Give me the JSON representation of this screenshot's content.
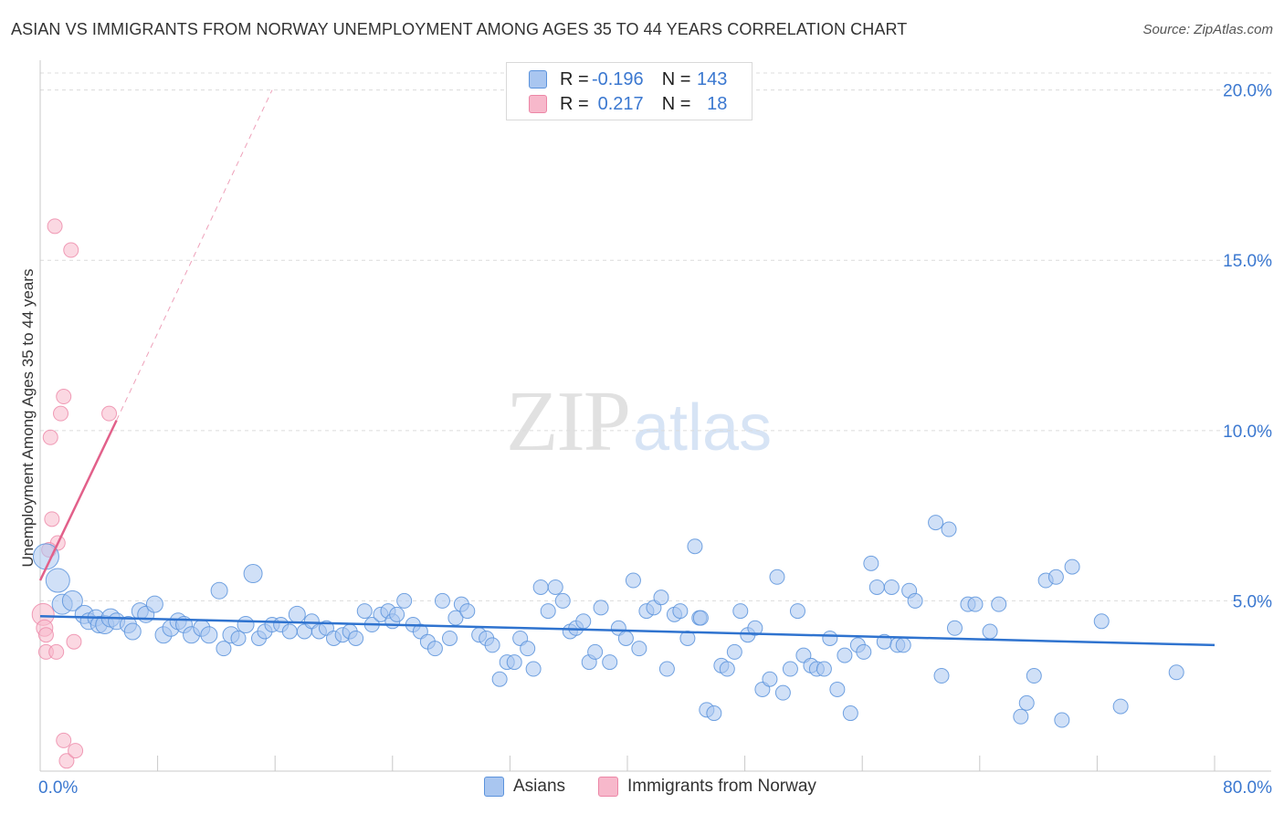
{
  "header": {
    "title": "ASIAN VS IMMIGRANTS FROM NORWAY UNEMPLOYMENT AMONG AGES 35 TO 44 YEARS CORRELATION CHART",
    "source": "Source: ZipAtlas.com"
  },
  "watermark": {
    "zip": "ZIP",
    "atlas": "atlas"
  },
  "legend": {
    "rows": [
      {
        "r_label": "R = ",
        "r_value": "-0.196",
        "n_label": "N = ",
        "n_value": "143",
        "color": "#a9c6f0"
      },
      {
        "r_label": "R = ",
        "r_value": "0.217",
        "n_label": "N = ",
        "n_value": "18",
        "color": "#f7b8cb"
      }
    ]
  },
  "bottom_legend": {
    "asians": "Asians",
    "norway": "Immigrants from Norway"
  },
  "colors": {
    "asian_fill": "#a9c6f0",
    "asian_stroke": "#5b93dc",
    "asian_line": "#2f73cf",
    "norway_fill": "#f7b8cb",
    "norway_stroke": "#ec86a6",
    "norway_line": "#e2608a",
    "tick_text": "#3b78d0",
    "grid": "#dcdcdc"
  },
  "chart_data": {
    "type": "scatter",
    "title": "ASIAN VS IMMIGRANTS FROM NORWAY UNEMPLOYMENT AMONG AGES 35 TO 44 YEARS CORRELATION CHART",
    "xlabel": "",
    "ylabel": "Unemployment Among Ages 35 to 44 years",
    "xlim": [
      0,
      80
    ],
    "ylim": [
      0,
      20.5
    ],
    "x_tick_labels": [
      "0.0%",
      "80.0%"
    ],
    "y_ticks": [
      5,
      10,
      15,
      20
    ],
    "y_tick_labels": [
      "5.0%",
      "10.0%",
      "15.0%",
      "20.0%"
    ],
    "grid": "horizontal dashed",
    "series": [
      {
        "name": "Asians",
        "r": -0.196,
        "n": 143,
        "trend": {
          "x": [
            0,
            80
          ],
          "y": [
            4.55,
            3.7
          ]
        },
        "points": [
          [
            0.4,
            6.3,
            14
          ],
          [
            1.2,
            5.6,
            13
          ],
          [
            1.5,
            4.9,
            11
          ],
          [
            2.2,
            5.0,
            11
          ],
          [
            3.0,
            4.6,
            10
          ],
          [
            3.3,
            4.4,
            9
          ],
          [
            3.8,
            4.5,
            9
          ],
          [
            4.0,
            4.3,
            9
          ],
          [
            4.4,
            4.3,
            10
          ],
          [
            4.8,
            4.5,
            10
          ],
          [
            5.2,
            4.4,
            9
          ],
          [
            6.0,
            4.3,
            9
          ],
          [
            6.3,
            4.1,
            9
          ],
          [
            6.8,
            4.7,
            9
          ],
          [
            7.2,
            4.6,
            9
          ],
          [
            7.8,
            4.9,
            9
          ],
          [
            8.4,
            4.0,
            9
          ],
          [
            8.9,
            4.2,
            9
          ],
          [
            9.4,
            4.4,
            9
          ],
          [
            9.8,
            4.3,
            9
          ],
          [
            10.3,
            4.0,
            9
          ],
          [
            11.0,
            4.2,
            9
          ],
          [
            11.5,
            4.0,
            9
          ],
          [
            12.2,
            5.3,
            9
          ],
          [
            12.5,
            3.6,
            8
          ],
          [
            13.0,
            4.0,
            9
          ],
          [
            13.5,
            3.9,
            8
          ],
          [
            14.0,
            4.3,
            9
          ],
          [
            14.5,
            5.8,
            10
          ],
          [
            14.9,
            3.9,
            8
          ],
          [
            15.3,
            4.1,
            8
          ],
          [
            15.8,
            4.3,
            8
          ],
          [
            16.4,
            4.3,
            8
          ],
          [
            17.0,
            4.1,
            8
          ],
          [
            17.5,
            4.6,
            9
          ],
          [
            18.0,
            4.1,
            8
          ],
          [
            18.5,
            4.4,
            8
          ],
          [
            19.0,
            4.1,
            8
          ],
          [
            19.5,
            4.2,
            8
          ],
          [
            20.0,
            3.9,
            8
          ],
          [
            20.6,
            4.0,
            8
          ],
          [
            21.1,
            4.1,
            8
          ],
          [
            21.5,
            3.9,
            8
          ],
          [
            22.1,
            4.7,
            8
          ],
          [
            22.6,
            4.3,
            8
          ],
          [
            23.2,
            4.6,
            8
          ],
          [
            23.7,
            4.7,
            8
          ],
          [
            24.0,
            4.4,
            8
          ],
          [
            24.3,
            4.6,
            8
          ],
          [
            24.8,
            5.0,
            8
          ],
          [
            25.4,
            4.3,
            8
          ],
          [
            25.9,
            4.1,
            8
          ],
          [
            26.4,
            3.8,
            8
          ],
          [
            26.9,
            3.6,
            8
          ],
          [
            27.4,
            5.0,
            8
          ],
          [
            27.9,
            3.9,
            8
          ],
          [
            28.3,
            4.5,
            8
          ],
          [
            28.7,
            4.9,
            8
          ],
          [
            29.1,
            4.7,
            8
          ],
          [
            29.9,
            4.0,
            8
          ],
          [
            30.4,
            3.9,
            8
          ],
          [
            30.8,
            3.7,
            8
          ],
          [
            31.3,
            2.7,
            8
          ],
          [
            31.8,
            3.2,
            8
          ],
          [
            32.3,
            3.2,
            8
          ],
          [
            32.7,
            3.9,
            8
          ],
          [
            33.2,
            3.6,
            8
          ],
          [
            33.6,
            3.0,
            8
          ],
          [
            34.1,
            5.4,
            8
          ],
          [
            34.6,
            4.7,
            8
          ],
          [
            35.1,
            5.4,
            8
          ],
          [
            35.6,
            5.0,
            8
          ],
          [
            36.1,
            4.1,
            8
          ],
          [
            36.5,
            4.2,
            8
          ],
          [
            37.0,
            4.4,
            8
          ],
          [
            37.4,
            3.2,
            8
          ],
          [
            37.8,
            3.5,
            8
          ],
          [
            38.2,
            4.8,
            8
          ],
          [
            38.8,
            3.2,
            8
          ],
          [
            39.4,
            4.2,
            8
          ],
          [
            39.9,
            3.9,
            8
          ],
          [
            40.4,
            5.6,
            8
          ],
          [
            40.8,
            3.6,
            8
          ],
          [
            41.3,
            4.7,
            8
          ],
          [
            41.8,
            4.8,
            8
          ],
          [
            42.3,
            5.1,
            8
          ],
          [
            42.7,
            3.0,
            8
          ],
          [
            43.2,
            4.6,
            8
          ],
          [
            43.6,
            4.7,
            8
          ],
          [
            44.1,
            3.9,
            8
          ],
          [
            44.6,
            6.6,
            8
          ],
          [
            44.9,
            4.5,
            8
          ],
          [
            45.4,
            1.8,
            8
          ],
          [
            45.9,
            1.7,
            8
          ],
          [
            46.4,
            3.1,
            8
          ],
          [
            46.8,
            3.0,
            8
          ],
          [
            47.3,
            3.5,
            8
          ],
          [
            47.7,
            4.7,
            8
          ],
          [
            48.2,
            4.0,
            8
          ],
          [
            48.7,
            4.2,
            8
          ],
          [
            49.2,
            2.4,
            8
          ],
          [
            49.7,
            2.7,
            8
          ],
          [
            50.2,
            5.7,
            8
          ],
          [
            50.6,
            2.3,
            8
          ],
          [
            51.1,
            3.0,
            8
          ],
          [
            51.6,
            4.7,
            8
          ],
          [
            52.0,
            3.4,
            8
          ],
          [
            52.5,
            3.1,
            8
          ],
          [
            52.9,
            3.0,
            8
          ],
          [
            53.4,
            3.0,
            8
          ],
          [
            53.8,
            3.9,
            8
          ],
          [
            54.3,
            2.4,
            8
          ],
          [
            54.8,
            3.4,
            8
          ],
          [
            55.2,
            1.7,
            8
          ],
          [
            55.7,
            3.7,
            8
          ],
          [
            56.1,
            3.5,
            8
          ],
          [
            56.6,
            6.1,
            8
          ],
          [
            57.0,
            5.4,
            8
          ],
          [
            57.5,
            3.8,
            8
          ],
          [
            58.0,
            5.4,
            8
          ],
          [
            58.4,
            3.7,
            8
          ],
          [
            58.8,
            3.7,
            8
          ],
          [
            59.2,
            5.3,
            8
          ],
          [
            59.6,
            5.0,
            8
          ],
          [
            61.0,
            7.3,
            8
          ],
          [
            61.4,
            2.8,
            8
          ],
          [
            61.9,
            7.1,
            8
          ],
          [
            62.3,
            4.2,
            8
          ],
          [
            63.2,
            4.9,
            8
          ],
          [
            63.7,
            4.9,
            8
          ],
          [
            64.7,
            4.1,
            8
          ],
          [
            65.3,
            4.9,
            8
          ],
          [
            66.8,
            1.6,
            8
          ],
          [
            67.2,
            2.0,
            8
          ],
          [
            67.7,
            2.8,
            8
          ],
          [
            68.5,
            5.6,
            8
          ],
          [
            69.2,
            5.7,
            8
          ],
          [
            69.6,
            1.5,
            8
          ],
          [
            70.3,
            6.0,
            8
          ],
          [
            72.3,
            4.4,
            8
          ],
          [
            73.6,
            1.9,
            8
          ],
          [
            77.4,
            2.9,
            8
          ],
          [
            45.0,
            4.5,
            8
          ]
        ]
      },
      {
        "name": "Immigrants from Norway",
        "r": 0.217,
        "n": 18,
        "trend": {
          "x": [
            0,
            5.2
          ],
          "y": [
            5.6,
            10.3
          ]
        },
        "trend_dashed": {
          "x": [
            5.2,
            15.8
          ],
          "y": [
            10.3,
            20.0
          ]
        },
        "points": [
          [
            0.2,
            4.6,
            12
          ],
          [
            0.3,
            4.2,
            9
          ],
          [
            0.4,
            4.0,
            8
          ],
          [
            0.4,
            3.5,
            8
          ],
          [
            0.7,
            9.8,
            8
          ],
          [
            0.8,
            7.4,
            8
          ],
          [
            1.0,
            16.0,
            8
          ],
          [
            1.1,
            3.5,
            8
          ],
          [
            1.2,
            6.7,
            8
          ],
          [
            1.4,
            10.5,
            8
          ],
          [
            1.6,
            11.0,
            8
          ],
          [
            1.6,
            0.9,
            8
          ],
          [
            1.8,
            0.3,
            8
          ],
          [
            2.1,
            15.3,
            8
          ],
          [
            2.3,
            3.8,
            8
          ],
          [
            2.4,
            0.6,
            8
          ],
          [
            4.7,
            10.5,
            8
          ],
          [
            0.6,
            6.5,
            8
          ]
        ]
      }
    ]
  }
}
